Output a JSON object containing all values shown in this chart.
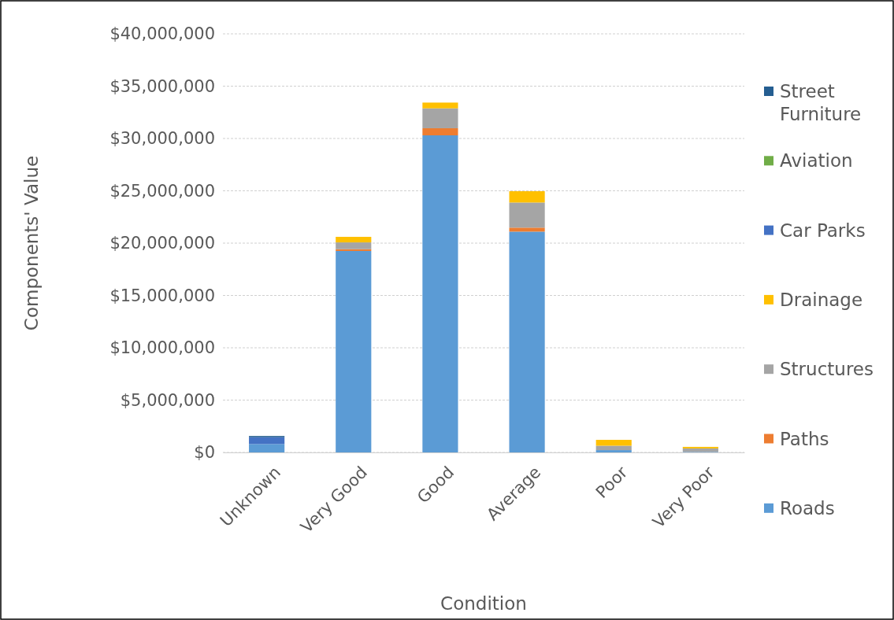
{
  "chart_data": {
    "type": "bar",
    "stacked": true,
    "xlabel": "Condition",
    "ylabel": "Components' Value",
    "categories": [
      "Unknown",
      "Very Good",
      "Good",
      "Average",
      "Poor",
      "Very Poor"
    ],
    "series": [
      {
        "name": "Roads",
        "color": "#5b9bd5",
        "values": [
          800000,
          19250000,
          30300000,
          21100000,
          220000,
          50000
        ]
      },
      {
        "name": "Paths",
        "color": "#ed7d31",
        "values": [
          0,
          170000,
          680000,
          380000,
          0,
          0
        ]
      },
      {
        "name": "Structures",
        "color": "#a5a5a5",
        "values": [
          0,
          650000,
          1900000,
          2400000,
          420000,
          330000
        ]
      },
      {
        "name": "Drainage",
        "color": "#ffc000",
        "values": [
          0,
          530000,
          550000,
          1080000,
          560000,
          150000
        ]
      },
      {
        "name": "Car Parks",
        "color": "#4472c4",
        "values": [
          650000,
          0,
          0,
          0,
          0,
          0
        ]
      },
      {
        "name": "Aviation",
        "color": "#70ad47",
        "values": [
          0,
          0,
          0,
          0,
          0,
          0
        ]
      },
      {
        "name": "Street Furniture",
        "color": "#255e91",
        "values": [
          120000,
          0,
          0,
          0,
          0,
          0
        ]
      }
    ],
    "ylim": [
      0,
      40000000
    ],
    "yticks": [
      {
        "value": 0,
        "label": "$0"
      },
      {
        "value": 5000000,
        "label": "$5,000,000"
      },
      {
        "value": 10000000,
        "label": "$10,000,000"
      },
      {
        "value": 15000000,
        "label": "$15,000,000"
      },
      {
        "value": 20000000,
        "label": "$20,000,000"
      },
      {
        "value": 25000000,
        "label": "$25,000,000"
      },
      {
        "value": 30000000,
        "label": "$30,000,000"
      },
      {
        "value": 35000000,
        "label": "$35,000,000"
      },
      {
        "value": 40000000,
        "label": "$40,000,000"
      }
    ],
    "grid": "y",
    "legend": "right"
  }
}
